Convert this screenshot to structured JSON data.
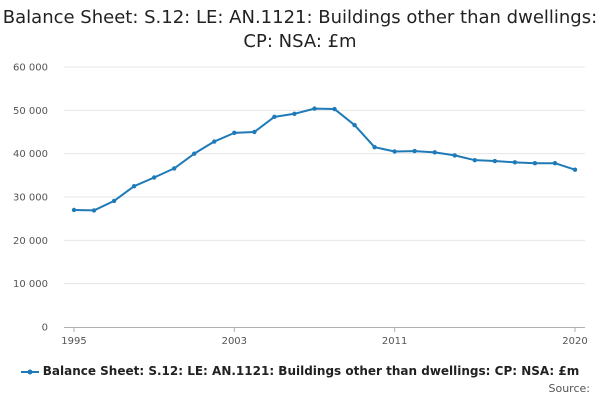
{
  "chart_data": {
    "type": "line",
    "title": "Balance Sheet: S.12: LE: AN.1121: Buildings other than dwellings: CP: NSA: £m",
    "x": [
      1995,
      1996,
      1997,
      1998,
      1999,
      2000,
      2001,
      2002,
      2003,
      2004,
      2005,
      2006,
      2007,
      2008,
      2009,
      2010,
      2011,
      2012,
      2013,
      2014,
      2015,
      2016,
      2017,
      2018,
      2019,
      2020
    ],
    "series": [
      {
        "name": "Balance Sheet: S.12: LE: AN.1121: Buildings other than dwellings: CP: NSA: £m",
        "color": "#1f7ab8",
        "values": [
          27000,
          26900,
          29100,
          32500,
          34500,
          36600,
          40000,
          42800,
          44800,
          45000,
          48500,
          49200,
          50400,
          50300,
          46600,
          41500,
          40500,
          40600,
          40300,
          39600,
          38500,
          38300,
          38000,
          37800,
          37800,
          36300
        ]
      }
    ],
    "ylim": [
      0,
      60000
    ],
    "yticks": [
      0,
      10000,
      20000,
      30000,
      40000,
      50000,
      60000
    ],
    "ytick_labels": [
      "0",
      "10 000",
      "20 000",
      "30 000",
      "40 000",
      "50 000",
      "60 000"
    ],
    "xticks": [
      1995,
      2003,
      2011,
      2020
    ],
    "xtick_labels": [
      "1995",
      "2003",
      "2011",
      "2020"
    ],
    "xlabel": "",
    "ylabel": "",
    "grid": true,
    "legend_position": "bottom"
  },
  "footer": {
    "source_label": "Source:"
  }
}
